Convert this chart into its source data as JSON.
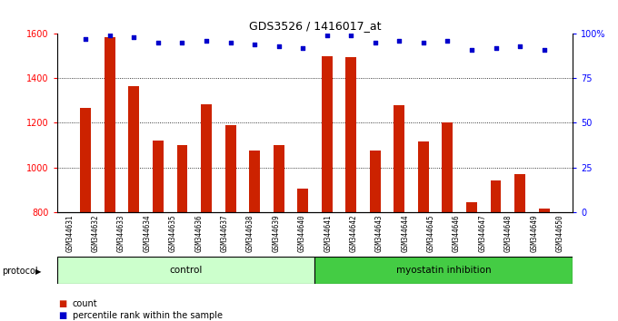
{
  "title": "GDS3526 / 1416017_at",
  "samples": [
    "GSM344631",
    "GSM344632",
    "GSM344633",
    "GSM344634",
    "GSM344635",
    "GSM344636",
    "GSM344637",
    "GSM344638",
    "GSM344639",
    "GSM344640",
    "GSM344641",
    "GSM344642",
    "GSM344643",
    "GSM344644",
    "GSM344645",
    "GSM344646",
    "GSM344647",
    "GSM344648",
    "GSM344649",
    "GSM344650"
  ],
  "counts": [
    1265,
    1585,
    1365,
    1120,
    1100,
    1285,
    1190,
    1075,
    1100,
    905,
    1500,
    1495,
    1075,
    1280,
    1115,
    1200,
    845,
    940,
    970,
    815
  ],
  "percentile_ranks": [
    97,
    99,
    98,
    95,
    95,
    96,
    95,
    94,
    93,
    92,
    99,
    99,
    95,
    96,
    95,
    96,
    91,
    92,
    93,
    91
  ],
  "bar_color": "#cc2200",
  "dot_color": "#0000cc",
  "ylim_left": [
    800,
    1600
  ],
  "ylim_right": [
    0,
    100
  ],
  "yticks_left": [
    800,
    1000,
    1200,
    1400,
    1600
  ],
  "yticks_right": [
    0,
    25,
    50,
    75,
    100
  ],
  "ytick_labels_right": [
    "0",
    "25",
    "50",
    "75",
    "100%"
  ],
  "grid_values": [
    1000,
    1200,
    1400
  ],
  "control_count": 10,
  "control_label": "control",
  "myostatin_label": "myostatin inhibition",
  "protocol_label": "protocol",
  "legend_count_label": "count",
  "legend_pct_label": "percentile rank within the sample",
  "control_color": "#ccffcc",
  "myostatin_color": "#44cc44",
  "bg_color": "#ffffff",
  "tick_area_color": "#d0d0d0"
}
